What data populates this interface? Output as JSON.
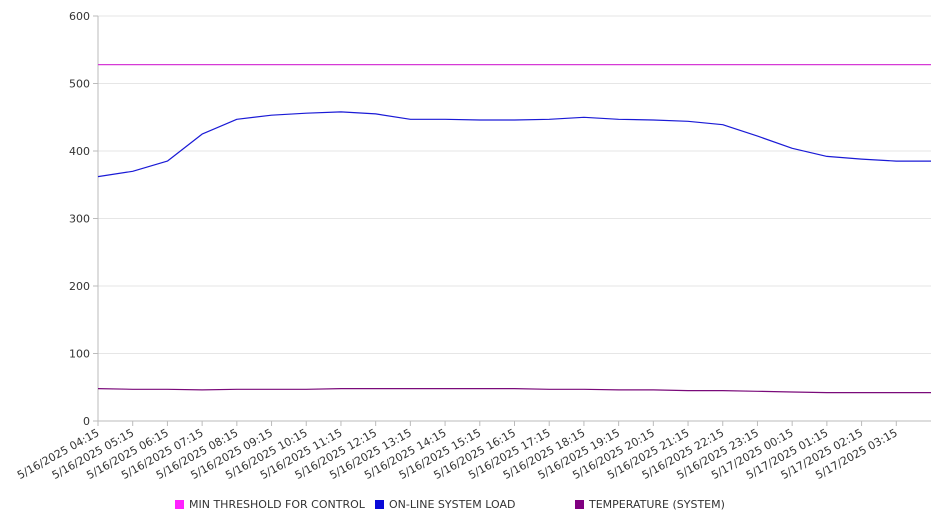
{
  "chart_data": {
    "type": "line",
    "title": "",
    "xlabel": "",
    "ylabel": "",
    "ylim": [
      0,
      600
    ],
    "yticks": [
      0,
      100,
      200,
      300,
      400,
      500,
      600
    ],
    "grid": true,
    "legend_position": "bottom",
    "x": [
      "5/16/2025 04:15",
      "5/16/2025 05:15",
      "5/16/2025 06:15",
      "5/16/2025 07:15",
      "5/16/2025 08:15",
      "5/16/2025 09:15",
      "5/16/2025 10:15",
      "5/16/2025 11:15",
      "5/16/2025 12:15",
      "5/16/2025 13:15",
      "5/16/2025 14:15",
      "5/16/2025 15:15",
      "5/16/2025 16:15",
      "5/16/2025 17:15",
      "5/16/2025 18:15",
      "5/16/2025 19:15",
      "5/16/2025 20:15",
      "5/16/2025 21:15",
      "5/16/2025 22:15",
      "5/16/2025 23:15",
      "5/17/2025 00:15",
      "5/17/2025 01:15",
      "5/17/2025 02:15",
      "5/17/2025 03:15"
    ],
    "series": [
      {
        "name": "MIN THRESHOLD FOR CONTROL",
        "color": "#d63ad6",
        "values": [
          528,
          528,
          528,
          528,
          528,
          528,
          528,
          528,
          528,
          528,
          528,
          528,
          528,
          528,
          528,
          528,
          528,
          528,
          528,
          528,
          528,
          528,
          528,
          528
        ]
      },
      {
        "name": "ON-LINE SYSTEM LOAD",
        "color": "#1a1ad6",
        "values": [
          362,
          370,
          385,
          425,
          447,
          453,
          456,
          458,
          455,
          447,
          447,
          446,
          446,
          447,
          450,
          447,
          446,
          444,
          439,
          422,
          404,
          392,
          388,
          385
        ]
      },
      {
        "name": "TEMPERATURE (SYSTEM)",
        "color": "#7a0a7a",
        "values": [
          48,
          47,
          47,
          46,
          47,
          47,
          47,
          48,
          48,
          48,
          48,
          48,
          48,
          47,
          47,
          46,
          46,
          45,
          45,
          44,
          43,
          42,
          42,
          42
        ]
      }
    ]
  }
}
